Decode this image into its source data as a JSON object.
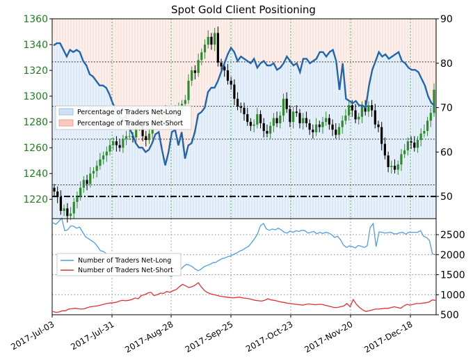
{
  "chart_data": [
    {
      "type": "candlestick+line+area",
      "title": "Spot Gold Client Positioning",
      "x_tick_labels": [
        "2017-Jul-03",
        "2017-Jul-31",
        "2017-Aug-28",
        "2017-Sep-25",
        "2017-Oct-23",
        "2017-Nov-20",
        "2017-Dec-18"
      ],
      "left_axis": {
        "ticks": [
          1220,
          1240,
          1260,
          1280,
          1300,
          1320,
          1340,
          1360
        ],
        "range": [
          1205,
          1360
        ],
        "color": "#1e7d1e"
      },
      "right_axis": {
        "ticks": [
          50,
          60,
          70,
          80,
          90
        ],
        "range": [
          45,
          90
        ]
      },
      "legend": [
        "Percentage of Traders Net-Long",
        "Percentage of Traders Net-Short"
      ],
      "legend_placement": "center-left",
      "reference_lines_right_axis": {
        "dash_dot": 50,
        "dotted": [
          52.6,
          62.9,
          70.3,
          80.3
        ]
      },
      "grid": true,
      "price_close": [
        1226,
        1222,
        1211,
        1213,
        1207,
        1209,
        1218,
        1222,
        1229,
        1235,
        1232,
        1240,
        1242,
        1246,
        1251,
        1254,
        1257,
        1262,
        1265,
        1262,
        1260,
        1267,
        1269,
        1269,
        1268,
        1276,
        1278,
        1269,
        1266,
        1271,
        1280,
        1282,
        1285,
        1289,
        1287,
        1286,
        1289,
        1288,
        1290,
        1294,
        1297,
        1312,
        1320,
        1318,
        1328,
        1334,
        1340,
        1346,
        1340,
        1349,
        1326,
        1323,
        1320,
        1312,
        1309,
        1298,
        1292,
        1291,
        1286,
        1280,
        1277,
        1278,
        1286,
        1279,
        1273,
        1271,
        1277,
        1283,
        1279,
        1285,
        1298,
        1290,
        1280,
        1288,
        1287,
        1279,
        1283,
        1279,
        1274,
        1272,
        1278,
        1276,
        1280,
        1283,
        1278,
        1274,
        1270,
        1276,
        1281,
        1285,
        1293,
        1289,
        1282,
        1284,
        1292,
        1288,
        1293,
        1289,
        1278,
        1276,
        1263,
        1254,
        1245,
        1246,
        1243,
        1247,
        1255,
        1258,
        1265,
        1264,
        1260,
        1266,
        1271,
        1273,
        1281,
        1287,
        1305
      ],
      "pct_net_long": [
        84,
        84.5,
        84.5,
        83,
        81.5,
        83,
        82.5,
        83,
        82.5,
        80.5,
        79.5,
        77.5,
        77,
        76,
        75,
        75,
        74.5,
        73,
        71,
        69.5,
        68,
        67.5,
        68,
        65.5,
        64,
        62,
        61,
        61,
        60,
        60.5,
        62,
        64,
        64.5,
        60.5,
        57,
        60,
        64.5,
        65,
        61.5,
        64.5,
        58.5,
        61.5,
        62,
        64.5,
        68.5,
        69,
        70,
        73.5,
        74.5,
        74.5,
        76,
        78,
        80,
        82,
        83.5,
        82.5,
        80.5,
        81.5,
        81,
        80.5,
        80,
        81,
        79,
        80,
        80.5,
        79.5,
        79.5,
        80,
        78.5,
        79,
        80,
        81.5,
        80.5,
        79.5,
        80,
        78,
        81,
        81,
        80,
        80.5,
        81,
        82.5,
        82.5,
        81.5,
        82.5,
        83,
        80.5,
        74,
        80,
        72,
        71.5,
        71,
        71.5,
        70.5,
        70.5,
        70,
        75,
        78.5,
        80.5,
        82.5,
        81.5,
        82,
        81,
        81.5,
        82,
        82.5,
        80.5,
        80,
        79,
        78.5,
        78.5,
        78,
        76.5,
        75,
        72.5,
        71,
        70.5
      ],
      "right_axis_min": 45,
      "right_axis_max": 90
    },
    {
      "type": "line",
      "y_ticks": [
        500,
        1000,
        1500,
        2000,
        2500
      ],
      "ylim": [
        500,
        2900
      ],
      "legend": [
        "Number of Traders Net-Long",
        "Number of Traders Net-Short"
      ],
      "legend_placement": "center-left",
      "grid": true,
      "series": [
        {
          "name": "Number of Traders Net-Long",
          "color": "#4f9fe0",
          "values": [
            2800,
            2760,
            2830,
            2910,
            2600,
            2620,
            2720,
            2710,
            2660,
            2690,
            2570,
            2450,
            2400,
            2350,
            2300,
            2210,
            2100,
            2080,
            2030,
            1980,
            1960,
            1900,
            1840,
            1800,
            1760,
            1720,
            1760,
            1700,
            1650,
            1620,
            1620,
            1640,
            1700,
            1720,
            1660,
            1590,
            1560,
            1540,
            1500,
            1480,
            1450,
            1530,
            1560,
            1620,
            1700,
            1760,
            1740,
            1700,
            1640,
            1600,
            1640,
            1700,
            1730,
            1760,
            1800,
            1810,
            1860,
            1900,
            1920,
            1950,
            1970,
            2010,
            2040,
            2090,
            2120,
            2170,
            2210,
            2300,
            2400,
            2520,
            2720,
            2780,
            2640,
            2610,
            2640,
            2620,
            2660,
            2620,
            2560,
            2540,
            2590,
            2560,
            2600,
            2580,
            2610,
            2600,
            2540,
            2560,
            2580,
            2520,
            2560,
            2530,
            2560,
            2540,
            2500,
            2430,
            2460,
            2370,
            2240,
            2180,
            2220,
            2200,
            2170,
            2230,
            2210,
            2180,
            2220,
            2680,
            2780,
            2200,
            2570,
            2560,
            2540,
            2550,
            2560,
            2520,
            2520,
            2550,
            2560,
            2510,
            2560,
            2560,
            2560,
            2560,
            2600,
            2460,
            2430,
            2350,
            2020,
            2000
          ]
        },
        {
          "name": "Number of Traders Net-Short",
          "color": "#e03030",
          "values": [
            580,
            560,
            570,
            600,
            600,
            640,
            650,
            660,
            650,
            640,
            650,
            680,
            700,
            710,
            720,
            740,
            760,
            780,
            790,
            800,
            810,
            840,
            860,
            850,
            860,
            880,
            920,
            900,
            980,
            1000,
            1040,
            1060,
            980,
            1000,
            1040,
            1030,
            1080,
            1060,
            1100,
            1130,
            1200,
            1260,
            1220,
            1180,
            1200,
            1240,
            1300,
            1190,
            1100,
            1050,
            1020,
            1000,
            980,
            960,
            950,
            940,
            930,
            920,
            930,
            940,
            920,
            910,
            900,
            880,
            860,
            850,
            840,
            860,
            900,
            870,
            860,
            840,
            820,
            810,
            790,
            780,
            770,
            760,
            750,
            740,
            760,
            770,
            760,
            750,
            760,
            760,
            740,
            720,
            700,
            680,
            680,
            700,
            720,
            780,
            700,
            880,
            760,
            680,
            620,
            580,
            600,
            620,
            640,
            640,
            650,
            660,
            660,
            680,
            700,
            680,
            660,
            720,
            760,
            740,
            760,
            780,
            780,
            790,
            800,
            820,
            870,
            860
          ]
        }
      ]
    }
  ]
}
